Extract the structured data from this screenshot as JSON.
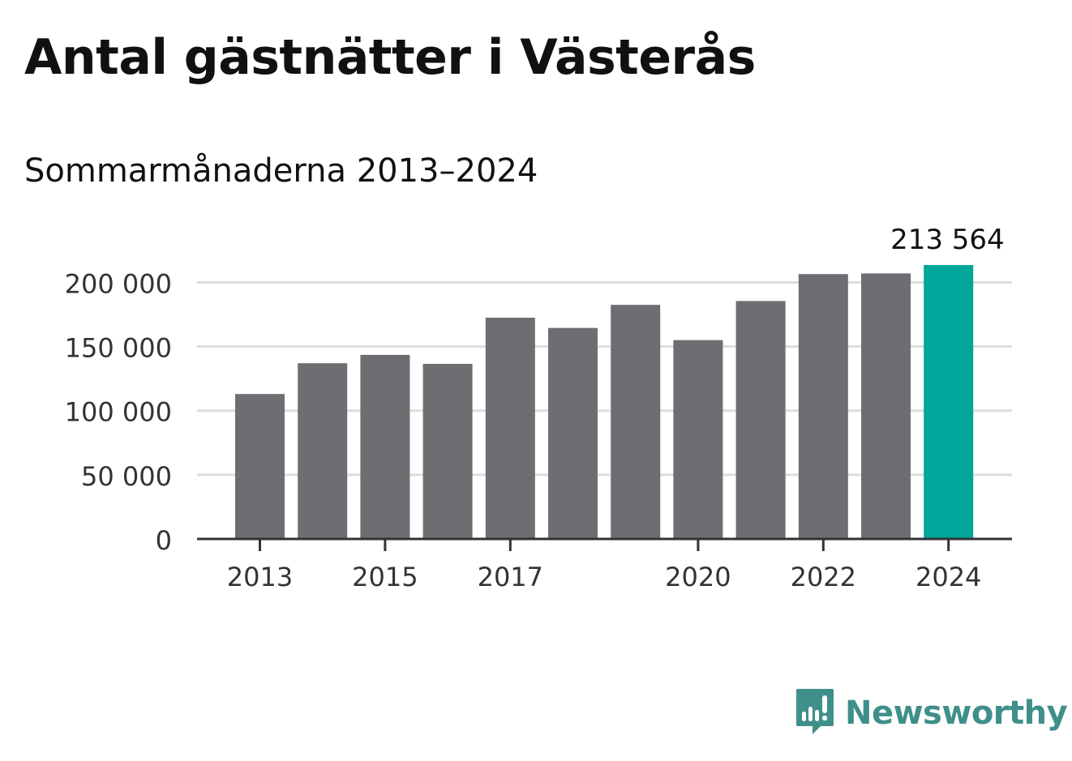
{
  "header": {
    "title": "Antal gästnätter i Västerås",
    "subtitle": "Sommarmånaderna 2013–2024"
  },
  "chart_data": {
    "type": "bar",
    "categories": [
      "2013",
      "2014",
      "2015",
      "2016",
      "2017",
      "2018",
      "2019",
      "2020",
      "2021",
      "2022",
      "2023",
      "2024"
    ],
    "values": [
      113000,
      137000,
      143500,
      136500,
      172500,
      164500,
      182500,
      155000,
      185500,
      206500,
      207000,
      213564
    ],
    "value_labels": {
      "2024": "213 564"
    },
    "x_tick_labels": [
      "2013",
      "2015",
      "2017",
      "2020",
      "2022",
      "2024"
    ],
    "y_ticks": [
      0,
      50000,
      100000,
      150000,
      200000
    ],
    "y_tick_labels": [
      "0",
      "50 000",
      "100 000",
      "150 000",
      "200 000"
    ],
    "ylim": [
      0,
      213564
    ],
    "grid": true,
    "legend": "none",
    "colors": {
      "bar": "#6e6d72",
      "highlight": "#00a69a",
      "grid": "#dddddd",
      "axis": "#333333"
    },
    "highlight_category": "2024"
  },
  "brand": {
    "name": "Newsworthy",
    "icon": "newsworthy-logo-icon",
    "color": "#3f8f8a"
  }
}
